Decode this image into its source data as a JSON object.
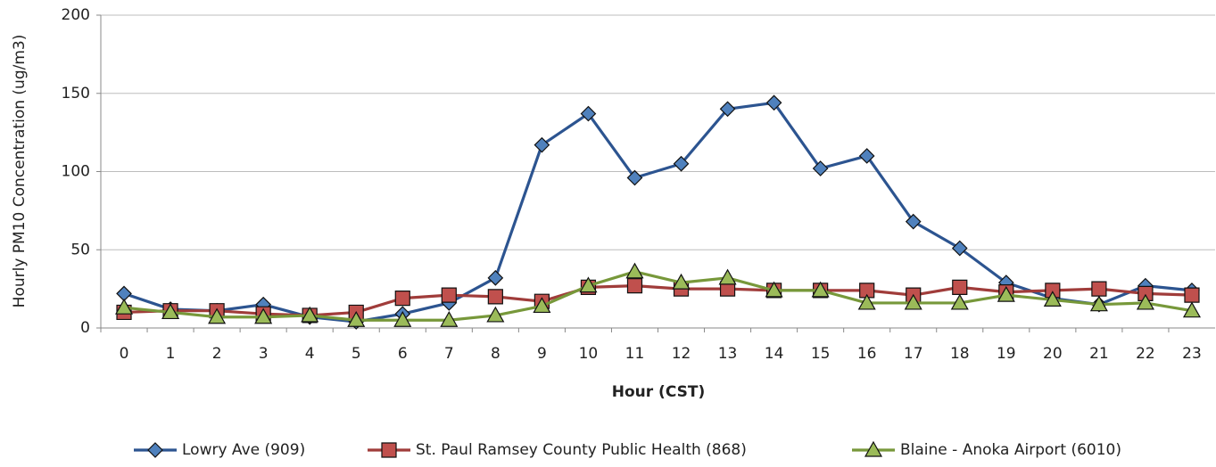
{
  "chart_data": {
    "type": "line",
    "x_label": "Hour (CST)",
    "y_label": "Hourly PM10 Concentration (ug/m3)",
    "categories": [
      "0",
      "1",
      "2",
      "3",
      "4",
      "5",
      "6",
      "7",
      "8",
      "9",
      "10",
      "11",
      "12",
      "13",
      "14",
      "15",
      "16",
      "17",
      "18",
      "19",
      "20",
      "21",
      "22",
      "23"
    ],
    "series": [
      {
        "name": "Lowry Ave (909)",
        "color": "#2c5490",
        "marker_color": "#4f81bd",
        "marker": "diamond",
        "values": [
          22,
          12,
          11,
          15,
          7,
          4,
          9,
          16,
          32,
          117,
          137,
          96,
          105,
          140,
          144,
          102,
          110,
          68,
          51,
          29,
          19,
          15,
          27,
          24
        ]
      },
      {
        "name": "St. Paul Ramsey County Public Health (868)",
        "color": "#a03c3a",
        "marker_color": "#c0504d",
        "marker": "square",
        "values": [
          10,
          11,
          11,
          9,
          8,
          10,
          19,
          21,
          20,
          17,
          26,
          27,
          25,
          25,
          24,
          24,
          24,
          21,
          26,
          23,
          24,
          25,
          22,
          21
        ]
      },
      {
        "name": "Blaine - Anoka Airport (6010)",
        "color": "#77983a",
        "marker_color": "#9bbb59",
        "marker": "triangle",
        "values": [
          13,
          10,
          7,
          7,
          8,
          5,
          5,
          5,
          8,
          14,
          27,
          36,
          29,
          32,
          24,
          24,
          16,
          16,
          16,
          21,
          18,
          15,
          16,
          11
        ]
      }
    ],
    "ylim": [
      0,
      200
    ],
    "yticks": [
      0,
      50,
      100,
      150,
      200
    ],
    "grid": true,
    "legend": "bottom"
  }
}
